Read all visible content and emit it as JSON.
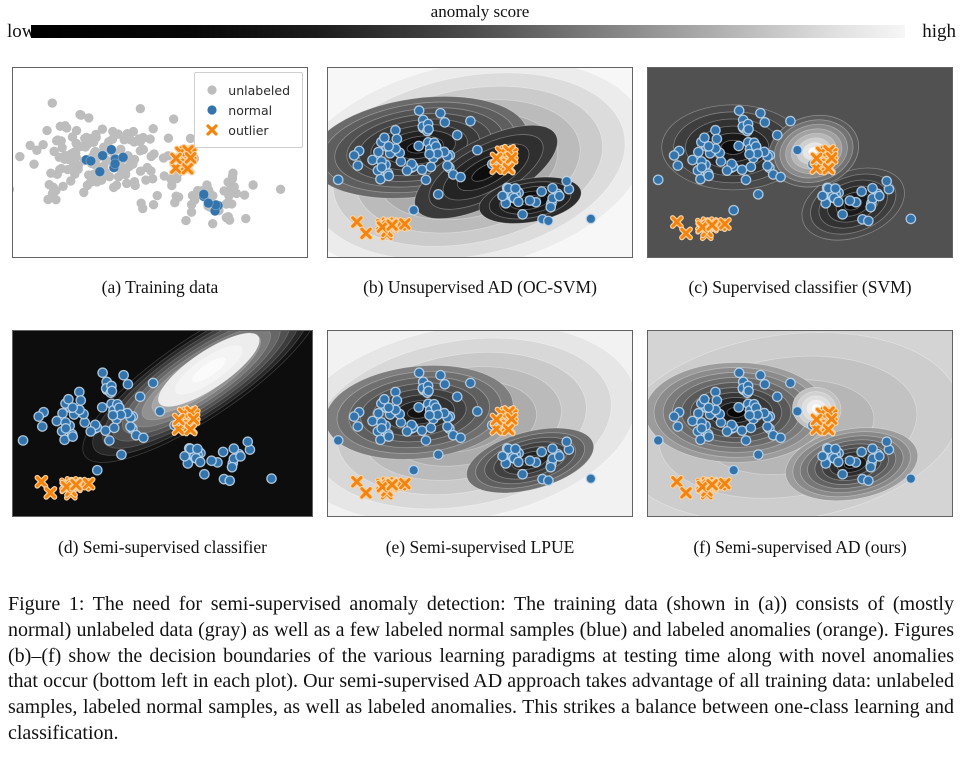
{
  "colorbar": {
    "title": "anomaly score",
    "left_label": "low",
    "right_label": "high"
  },
  "colors": {
    "unlabeled": "#bdbdbd",
    "normal": "#3374ac",
    "normal_edge": "#c3d9ec",
    "outlier": "#f5840e",
    "outlier_edge": "#fdd2a0"
  },
  "legend": {
    "items": [
      {
        "label": "unlabeled",
        "marker": "circle",
        "color": "#bdbdbd"
      },
      {
        "label": "normal",
        "marker": "circle",
        "color": "#3374ac"
      },
      {
        "label": "outlier",
        "marker": "x",
        "color": "#f5840e"
      }
    ]
  },
  "captions": {
    "a": "(a) Training data",
    "b": "(b) Unsupervised AD (OC-SVM)",
    "c": "(c) Supervised classifier (SVM)",
    "d": "(d) Semi-supervised classifier",
    "e": "(e) Semi-supervised LPUE",
    "f": "(f) Semi-supervised AD (ours)"
  },
  "figure_caption": "Figure 1: The need for semi-supervised anomaly detection: The training data (shown in (a)) consists of (mostly normal) unlabeled data (gray) as well as a few labeled normal samples (blue) and labeled anomalies (orange). Figures (b)–(f) show the decision boundaries of the various learning paradigms at testing time along with novel anomalies that occur (bottom left in each plot). Our semi-supervised AD approach takes advantage of all training data: unlabeled samples, labeled normal samples, as well as labeled anomalies. This strikes a balance between one-class learning and classification.",
  "chart_data": {
    "type": "scatter",
    "note": "Six panels share one 2D data space; coordinates normalized 0-1 (y down).",
    "clusters": {
      "unlabeled_A": {
        "n": 150,
        "cx": 0.295,
        "cy": 0.47,
        "sx": 0.115,
        "sy": 0.1,
        "seed": 11
      },
      "unlabeled_B": {
        "n": 48,
        "cx": 0.675,
        "cy": 0.7,
        "sx": 0.075,
        "sy": 0.062,
        "seed": 22
      },
      "labeled_normal_A": {
        "n": 10,
        "cx": 0.3,
        "cy": 0.5,
        "sx": 0.065,
        "sy": 0.05,
        "seed": 33
      },
      "labeled_normal_B": {
        "n": 6,
        "cx": 0.685,
        "cy": 0.705,
        "sx": 0.038,
        "sy": 0.032,
        "seed": 44
      },
      "labeled_outliers": {
        "n": 13,
        "cx": 0.565,
        "cy": 0.475,
        "sx": 0.022,
        "sy": 0.042,
        "seed": 55
      },
      "test_normal_A": {
        "n": 62,
        "cx": 0.295,
        "cy": 0.45,
        "sx": 0.1,
        "sy": 0.088,
        "seed": 66
      },
      "test_normal_B": {
        "n": 26,
        "cx": 0.67,
        "cy": 0.71,
        "sx": 0.068,
        "sy": 0.052,
        "seed": 77
      },
      "novel_outliers_group": {
        "n": 11,
        "cx": 0.2,
        "cy": 0.84,
        "sx": 0.018,
        "sy": 0.02,
        "seed": 88
      },
      "novel_outliers_singles": {
        "points": [
          [
            0.095,
            0.815
          ],
          [
            0.125,
            0.875
          ],
          [
            0.253,
            0.825
          ]
        ]
      }
    },
    "panels": [
      {
        "id": "a",
        "bg": "#ffffff",
        "legend": true,
        "surface": [],
        "show": [
          "unlabeled_A",
          "unlabeled_B",
          "labeled_normal_A",
          "labeled_normal_B",
          "labeled_outliers"
        ]
      },
      {
        "id": "b",
        "bg": "#f7f7f7",
        "surface": [
          {
            "cx": 0.46,
            "cy": 0.52,
            "rx": 0.6,
            "ry": 0.54,
            "rot": -12,
            "levels": 8,
            "outer": "#ececec",
            "inner": "#7a7a7a"
          },
          {
            "cx": 0.3,
            "cy": 0.42,
            "rx": 0.36,
            "ry": 0.26,
            "rot": -8,
            "levels": 9,
            "outer": "#6a6a6a",
            "inner": "#0a0a0a"
          },
          {
            "cx": 0.52,
            "cy": 0.55,
            "rx": 0.26,
            "ry": 0.17,
            "rot": -28,
            "levels": 5,
            "outer": "#3a3a3a",
            "inner": "#0d0d0d"
          },
          {
            "cx": 0.665,
            "cy": 0.7,
            "rx": 0.17,
            "ry": 0.115,
            "rot": -10,
            "levels": 5,
            "outer": "#2c2c2c",
            "inner": "#070707"
          }
        ],
        "show": [
          "test_normal_A",
          "test_normal_B",
          "labeled_outliers",
          "novel_outliers_group",
          "novel_outliers_singles"
        ]
      },
      {
        "id": "c",
        "bg": "#515151",
        "surface": [
          {
            "cx": 0.28,
            "cy": 0.42,
            "rx": 0.235,
            "ry": 0.225,
            "rot": 0,
            "levels": 6,
            "outer": "#4b4b4b",
            "inner": "#0c0c0c",
            "line": "rgba(200,200,200,.45)"
          },
          {
            "cx": 0.675,
            "cy": 0.72,
            "rx": 0.175,
            "ry": 0.175,
            "rot": -20,
            "levels": 6,
            "outer": "#4b4b4b",
            "inner": "#0c0c0c",
            "line": "rgba(200,200,200,.45)"
          },
          {
            "cx": 0.545,
            "cy": 0.44,
            "rx": 0.15,
            "ry": 0.185,
            "rot": -15,
            "levels": 8,
            "outer": "#5c5c5c",
            "inner": "#fdfdfd",
            "line": "rgba(220,220,220,.45)"
          }
        ],
        "show": [
          "test_normal_A",
          "test_normal_B",
          "labeled_outliers",
          "novel_outliers_group",
          "novel_outliers_singles"
        ]
      },
      {
        "id": "d",
        "bg": "#0d0d0d",
        "surface": [
          {
            "cx": 0.63,
            "cy": 0.25,
            "rx": 0.47,
            "ry": 0.215,
            "rot": -34,
            "levels": 12,
            "outer": "#121212",
            "inner": "#fafafa",
            "line": "rgba(255,255,255,.18)"
          },
          {
            "cx": 0.655,
            "cy": 0.21,
            "rx": 0.2,
            "ry": 0.1,
            "rot": -34,
            "levels": 3,
            "outer": "#ededed",
            "inner": "#fbfbfb",
            "line": "rgba(255,255,255,.12)"
          }
        ],
        "show": [
          "test_normal_A",
          "test_normal_B",
          "labeled_outliers",
          "novel_outliers_group",
          "novel_outliers_singles"
        ]
      },
      {
        "id": "e",
        "bg": "#f2f2f2",
        "surface": [
          {
            "cx": 0.44,
            "cy": 0.5,
            "rx": 0.58,
            "ry": 0.52,
            "rot": -10,
            "levels": 7,
            "outer": "#e6e6e6",
            "inner": "#8f8f8f"
          },
          {
            "cx": 0.3,
            "cy": 0.44,
            "rx": 0.31,
            "ry": 0.25,
            "rot": -6,
            "levels": 8,
            "outer": "#7e7e7e",
            "inner": "#121212"
          },
          {
            "cx": 0.665,
            "cy": 0.7,
            "rx": 0.215,
            "ry": 0.155,
            "rot": -15,
            "levels": 7,
            "outer": "#6f6f6f",
            "inner": "#121212"
          }
        ],
        "show": [
          "test_normal_A",
          "test_normal_B",
          "labeled_outliers",
          "novel_outliers_group",
          "novel_outliers_singles"
        ]
      },
      {
        "id": "f",
        "bg": "#d4d4d4",
        "surface": [
          {
            "cx": 0.46,
            "cy": 0.52,
            "rx": 0.57,
            "ry": 0.5,
            "rot": -8,
            "levels": 4,
            "outer": "#cdcdcd",
            "inner": "#ababab"
          },
          {
            "cx": 0.29,
            "cy": 0.44,
            "rx": 0.3,
            "ry": 0.27,
            "rot": 0,
            "levels": 10,
            "outer": "#9c9c9c",
            "inner": "#060606"
          },
          {
            "cx": 0.67,
            "cy": 0.72,
            "rx": 0.22,
            "ry": 0.19,
            "rot": -10,
            "levels": 9,
            "outer": "#9c9c9c",
            "inner": "#060606"
          },
          {
            "cx": 0.555,
            "cy": 0.42,
            "rx": 0.08,
            "ry": 0.115,
            "rot": 10,
            "levels": 5,
            "outer": "#c2c2c2",
            "inner": "#fcfcfc"
          }
        ],
        "show": [
          "test_normal_A",
          "test_normal_B",
          "labeled_outliers",
          "novel_outliers_group",
          "novel_outliers_singles"
        ]
      }
    ]
  }
}
